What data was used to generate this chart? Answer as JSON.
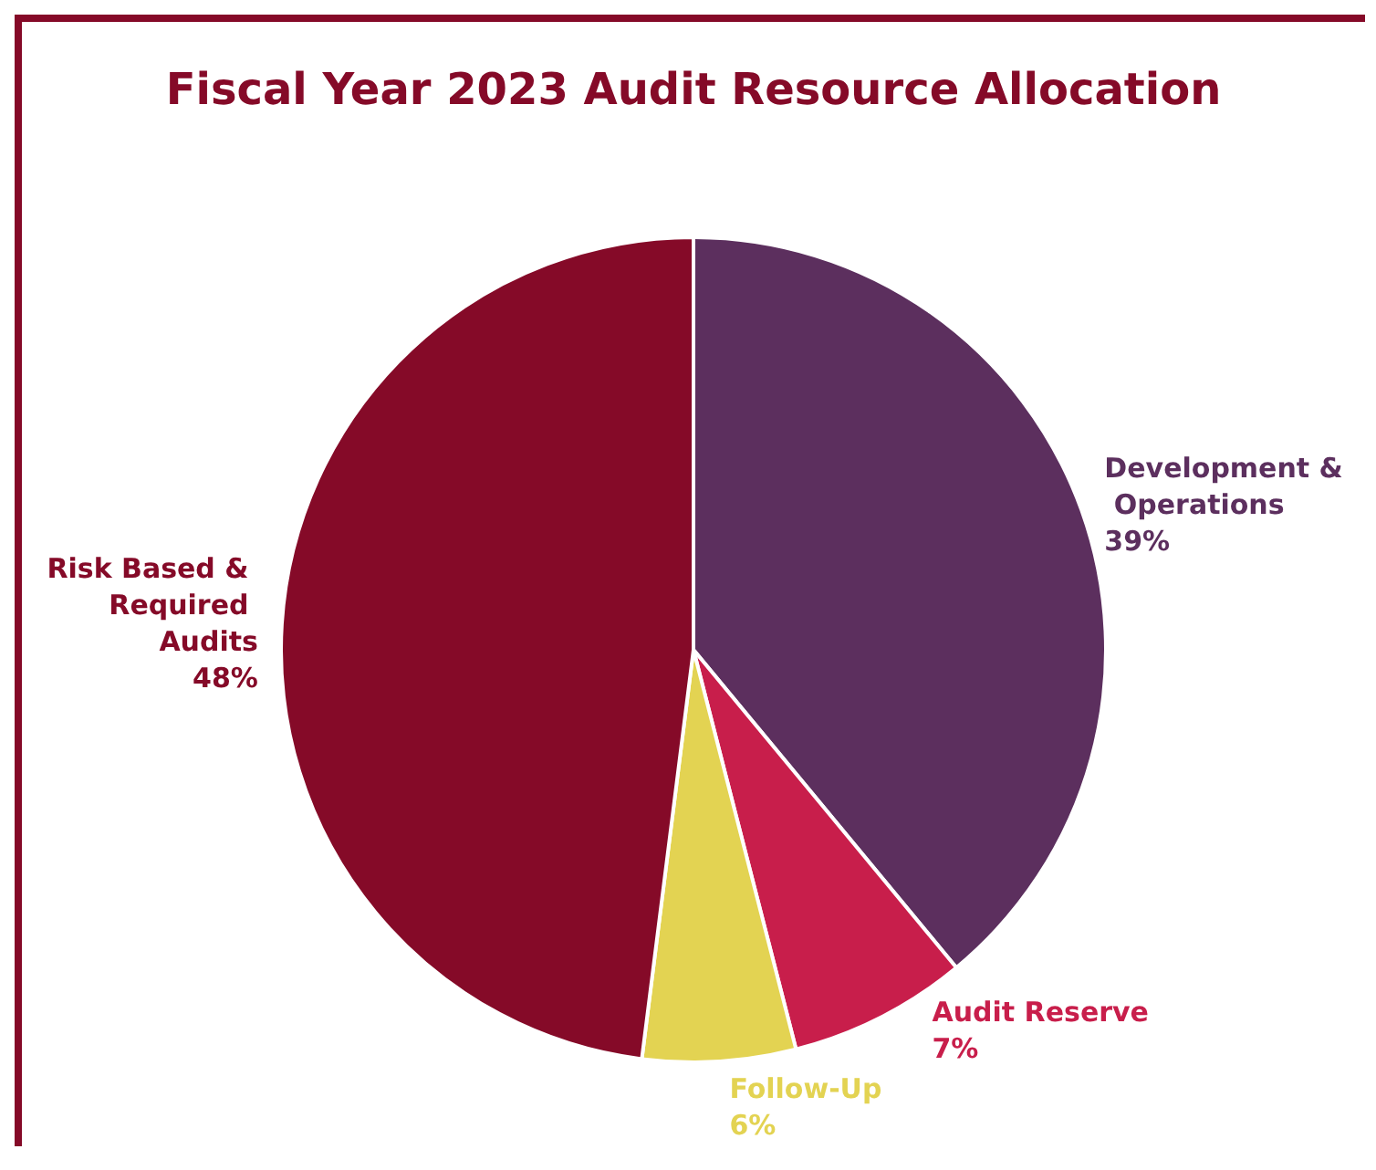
{
  "chart_data": {
    "type": "pie",
    "title": "Fiscal Year 2023 Audit Resource Allocation",
    "categories": [
      "Development & Operations",
      "Audit Reserve",
      "Follow-Up",
      "Risk Based & Required Audits"
    ],
    "values": [
      39,
      7,
      6,
      48
    ],
    "colors": [
      "#5c2f5e",
      "#c81e4b",
      "#e3d352",
      "#850a28"
    ],
    "value_labels": [
      "39%",
      "7%",
      "6%",
      "48%"
    ],
    "legend": false
  }
}
